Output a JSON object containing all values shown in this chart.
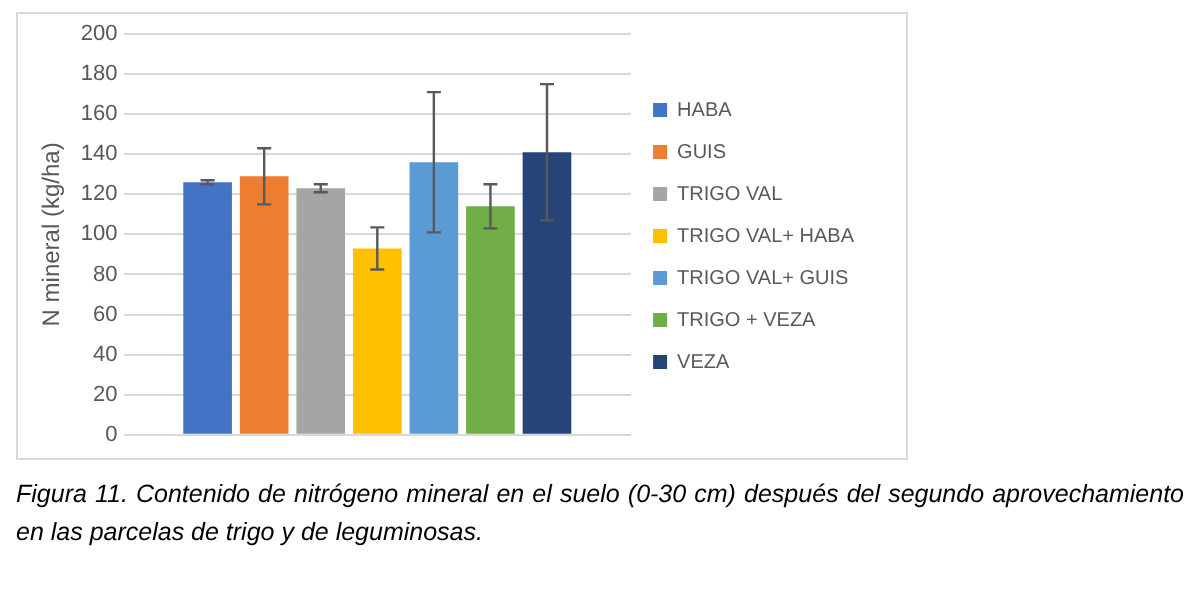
{
  "chart_data": {
    "type": "bar",
    "ylabel": "N mineral (kg/ha)",
    "categories": [
      null
    ],
    "series": [
      {
        "name": "HABA",
        "color": "#4472c4",
        "values": [
          126
        ],
        "errors": [
          1
        ]
      },
      {
        "name": "GUIS",
        "color": "#ed7d31",
        "values": [
          129
        ],
        "errors": [
          14
        ]
      },
      {
        "name": "TRIGO VAL",
        "color": "#a5a5a5",
        "values": [
          123
        ],
        "errors": [
          2
        ]
      },
      {
        "name": "TRIGO VAL+ HABA",
        "color": "#ffc000",
        "values": [
          93
        ],
        "errors": [
          10.5
        ]
      },
      {
        "name": "TRIGO VAL+ GUIS",
        "color": "#5b9bd5",
        "values": [
          136
        ],
        "errors": [
          35
        ]
      },
      {
        "name": "TRIGO + VEZA",
        "color": "#70ad47",
        "values": [
          114
        ],
        "errors": [
          11
        ]
      },
      {
        "name": "VEZA",
        "color": "#264478",
        "values": [
          141
        ],
        "errors": [
          34
        ]
      }
    ],
    "ylim": [
      0,
      200
    ],
    "yticks": [
      0,
      20,
      40,
      60,
      80,
      100,
      120,
      140,
      160,
      180,
      200
    ],
    "grid": "y",
    "legend": "right",
    "annotations": [
      "Figura 11. Contenido de nitrógeno mineral en el suelo (0-30 cm) después del segundo aprovechamiento en las parcelas de trigo y de leguminosas."
    ]
  }
}
